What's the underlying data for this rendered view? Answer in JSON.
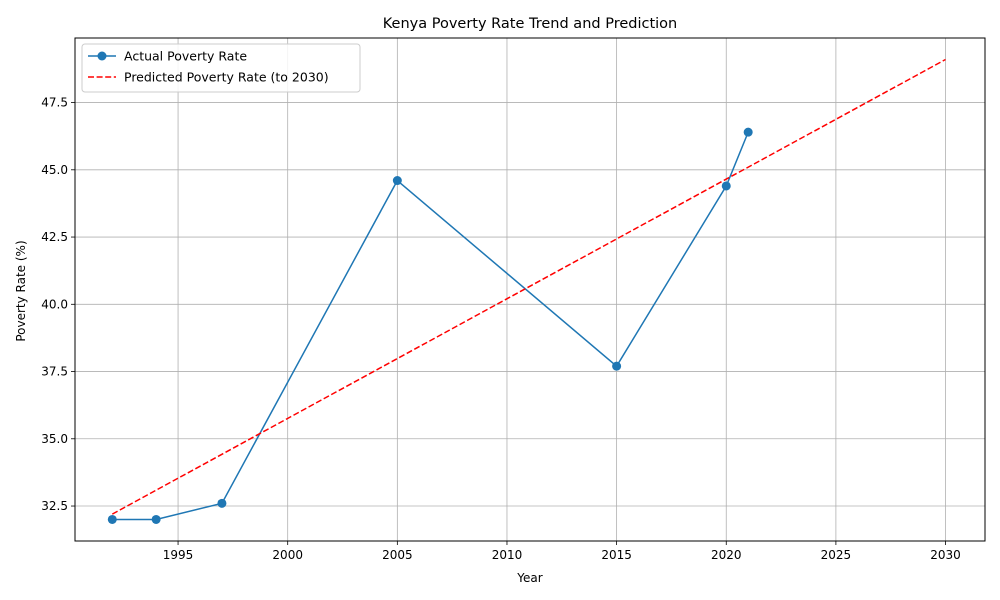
{
  "chart_data": {
    "type": "line",
    "title": "Kenya Poverty Rate Trend and Prediction",
    "xlabel": "Year",
    "ylabel": "Poverty Rate (%)",
    "xlim": [
      1990.3,
      2031.8
    ],
    "ylim": [
      31.2,
      49.9
    ],
    "x_ticks": [
      1995,
      2000,
      2005,
      2010,
      2015,
      2020,
      2025,
      2030
    ],
    "y_ticks": [
      32.5,
      35.0,
      37.5,
      40.0,
      42.5,
      45.0,
      47.5
    ],
    "y_tick_labels": [
      "32.5",
      "35.0",
      "37.5",
      "40.0",
      "42.5",
      "45.0",
      "47.5"
    ],
    "grid": true,
    "legend_position": "upper-left",
    "series": [
      {
        "name": "Actual Poverty Rate",
        "style": "solid-with-markers",
        "color": "#1f77b4",
        "x": [
          1992,
          1994,
          1997,
          2005,
          2015,
          2020,
          2021
        ],
        "y": [
          32.0,
          32.0,
          32.6,
          44.6,
          37.7,
          44.4,
          46.4
        ]
      },
      {
        "name": "Predicted Poverty Rate (to 2030)",
        "style": "dashed",
        "color": "#ff0000",
        "x": [
          1992,
          2030
        ],
        "y": [
          32.2,
          49.1
        ]
      }
    ]
  }
}
